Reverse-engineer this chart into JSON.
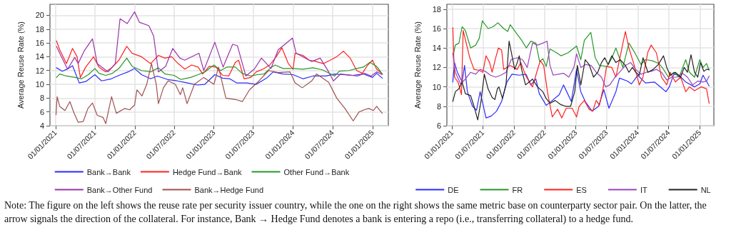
{
  "chart_data": [
    {
      "type": "line",
      "ylabel": "Average Reuse Rate (%)",
      "xlim": [
        "2020-12-06",
        "2025-03-15"
      ],
      "ylim": [
        4,
        21.6
      ],
      "yticks": [
        4,
        6,
        8,
        10,
        12,
        14,
        16,
        18,
        20
      ],
      "xticks": [
        {
          "value": "2021-01-01",
          "label": "01/01/2021"
        },
        {
          "value": "2021-07-01",
          "label": "01/07/2021"
        },
        {
          "value": "2022-01-01",
          "label": "01/01/2022"
        },
        {
          "value": "2022-07-01",
          "label": "01/07/2022"
        },
        {
          "value": "2023-01-01",
          "label": "01/01/2023"
        },
        {
          "value": "2023-07-01",
          "label": "01/07/2023"
        },
        {
          "value": "2024-01-01",
          "label": "01/01/2024"
        },
        {
          "value": "2024-07-01",
          "label": "01/07/2024"
        },
        {
          "value": "2025-01-01",
          "label": "01/01/2025"
        }
      ],
      "grid": true,
      "legend": "bottom",
      "marker": "none",
      "line_style": "solid",
      "annotations": [
        "Note: The figure on the left shows the reuse rate per security issuer country, while the one on the right shows the same metric base on counterparty sector pair. On the latter, the arrow signals the direction of the collateral. For instance, Bank → Hedge Fund denotes a bank is entering a repo (i.e., transferring collateral) to a hedge fund."
      ],
      "series": [
        {
          "name": "Bank→Bank",
          "color": "#2b2bff",
          "x": [
            "2021-01-05",
            "2021-02-01",
            "2021-03-01",
            "2021-03-20",
            "2021-04-20",
            "2021-05-20",
            "2021-07-01",
            "2021-08-01",
            "2021-09-15",
            "2021-10-20",
            "2021-12-01",
            "2021-12-31",
            "2022-02-01",
            "2022-03-15",
            "2022-04-15",
            "2022-06-01",
            "2022-07-15",
            "2022-09-01",
            "2022-10-15",
            "2022-11-20",
            "2023-01-05",
            "2023-02-10",
            "2023-03-15",
            "2023-04-15",
            "2023-06-01",
            "2023-07-15",
            "2023-09-01",
            "2023-10-01",
            "2023-11-15",
            "2024-01-01",
            "2024-02-15",
            "2024-04-01",
            "2024-06-01",
            "2024-07-10",
            "2024-08-15",
            "2024-10-01",
            "2024-11-20",
            "2025-01-01",
            "2025-01-20",
            "2025-02-15"
          ],
          "values": [
            12.4,
            11.9,
            12.3,
            12.7,
            10.2,
            10.4,
            11.4,
            10.5,
            10.8,
            11.3,
            11.8,
            12.3,
            11.4,
            10.8,
            11.2,
            10.7,
            10.5,
            10.2,
            9.9,
            10.0,
            11.4,
            10.9,
            10.8,
            10.2,
            10.2,
            10.0,
            10.9,
            11.8,
            11.5,
            11.4,
            10.8,
            11.2,
            11.2,
            11.5,
            11.4,
            11.3,
            11.5,
            11.0,
            11.6,
            10.9
          ]
        },
        {
          "name": "Hedge Fund→Bank",
          "color": "#ff2020",
          "x": [
            "2021-01-05",
            "2021-01-20",
            "2021-02-20",
            "2021-03-20",
            "2021-04-10",
            "2021-04-25",
            "2021-05-20",
            "2021-06-25",
            "2021-07-20",
            "2021-08-20",
            "2021-09-20",
            "2021-10-20",
            "2021-11-25",
            "2021-12-20",
            "2022-02-01",
            "2022-03-15",
            "2022-04-20",
            "2022-05-20",
            "2022-06-20",
            "2022-07-20",
            "2022-08-20",
            "2022-09-20",
            "2022-10-20",
            "2022-11-10",
            "2022-12-10",
            "2023-01-10",
            "2023-02-10",
            "2023-03-10",
            "2023-04-10",
            "2023-04-25",
            "2023-05-20",
            "2023-06-20",
            "2023-07-15",
            "2023-08-15",
            "2023-09-15",
            "2023-10-15",
            "2023-11-10",
            "2023-12-10",
            "2024-01-01",
            "2024-01-10",
            "2024-02-15",
            "2024-03-15",
            "2024-04-15",
            "2024-05-20",
            "2024-06-20",
            "2024-07-20",
            "2024-08-20",
            "2024-09-20",
            "2024-10-20",
            "2024-11-15",
            "2024-12-10",
            "2025-01-01",
            "2025-01-20",
            "2025-02-15"
          ],
          "values": [
            16.3,
            15,
            13,
            15.2,
            14,
            11,
            12.5,
            14,
            12.5,
            11.8,
            12.5,
            13.5,
            15.5,
            14.5,
            14,
            13,
            14.2,
            13.8,
            14,
            13,
            12.2,
            12.8,
            12.5,
            11.5,
            12.6,
            12.5,
            11.3,
            11.2,
            13.2,
            13.5,
            10.8,
            11.0,
            11.8,
            12.2,
            12.8,
            14.0,
            15.3,
            13.0,
            12.2,
            14.5,
            14.2,
            13.5,
            13.3,
            13.0,
            13.5,
            14.0,
            14.8,
            13.8,
            12.0,
            11.6,
            12.8,
            13.5,
            12.2,
            11.5
          ]
        },
        {
          "name": "Other Fund→Bank",
          "color": "#2a962a",
          "x": [
            "2021-01-05",
            "2021-01-20",
            "2021-02-20",
            "2021-04-01",
            "2021-05-01",
            "2021-06-01",
            "2021-07-01",
            "2021-07-20",
            "2021-08-20",
            "2021-09-20",
            "2021-10-20",
            "2021-11-25",
            "2021-12-20",
            "2022-02-01",
            "2022-03-15",
            "2022-04-20",
            "2022-05-20",
            "2022-07-01",
            "2022-08-01",
            "2022-09-15",
            "2022-10-20",
            "2022-11-20",
            "2023-01-01",
            "2023-02-01",
            "2023-03-01",
            "2023-04-10",
            "2023-05-10",
            "2023-06-20",
            "2023-07-20",
            "2023-08-20",
            "2023-09-20",
            "2023-10-10",
            "2023-11-15",
            "2024-01-01",
            "2024-02-15",
            "2024-04-01",
            "2024-05-15",
            "2024-06-15",
            "2024-07-10",
            "2024-08-01",
            "2024-09-15",
            "2024-10-20",
            "2024-11-20",
            "2024-12-20",
            "2025-01-20",
            "2025-02-15"
          ],
          "values": [
            11,
            11.5,
            11.2,
            11.0,
            10.8,
            11.4,
            12.3,
            11.6,
            11.3,
            11.6,
            12.3,
            13.8,
            12.6,
            12.0,
            11.8,
            12.4,
            11.5,
            11.3,
            10.7,
            11.0,
            11.4,
            11.8,
            12.8,
            12.0,
            12.5,
            12.5,
            11.6,
            11.2,
            11.4,
            11.5,
            12.4,
            12.8,
            12.3,
            12.3,
            12.2,
            12.4,
            12.1,
            11.6,
            11.2,
            11.9,
            12.0,
            12.3,
            12.5,
            13.2,
            12.6,
            11.5
          ]
        },
        {
          "name": "Bank→Other Fund",
          "color": "#9933aa",
          "x": [
            "2021-01-05",
            "2021-01-28",
            "2021-02-25",
            "2021-03-30",
            "2021-04-15",
            "2021-05-12",
            "2021-06-20",
            "2021-07-12",
            "2021-08-31",
            "2021-10-03",
            "2021-10-25",
            "2021-11-27",
            "2021-12-31",
            "2022-01-22",
            "2022-03-07",
            "2022-03-29",
            "2022-04-20",
            "2022-05-23",
            "2022-06-25",
            "2022-07-28",
            "2022-08-19",
            "2022-10-24",
            "2022-11-15",
            "2023-01-05",
            "2023-02-12",
            "2023-03-28",
            "2023-04-19",
            "2023-05-28",
            "2023-07-06",
            "2023-08-08",
            "2023-09-21",
            "2023-10-24",
            "2023-12-29",
            "2024-01-15",
            "2024-03-27",
            "2024-05-05",
            "2024-06-13",
            "2024-07-05",
            "2024-08-07",
            "2024-10-24",
            "2024-11-25",
            "2024-12-25",
            "2025-01-20",
            "2025-02-15"
          ],
          "values": [
            15.5,
            14,
            12.2,
            13.9,
            13,
            14.8,
            16.6,
            13,
            11.8,
            13,
            19.5,
            18.8,
            20.5,
            19,
            18.5,
            17,
            11.8,
            12.6,
            15.2,
            13.8,
            13.5,
            14.5,
            12,
            16.1,
            12.5,
            15.8,
            15.6,
            11.2,
            12.2,
            13.8,
            12.3,
            15,
            16.7,
            14.5,
            13.3,
            13.8,
            11.8,
            10.5,
            11.5,
            11.2,
            11.6,
            11.2,
            11.8,
            11.4
          ]
        },
        {
          "name": "Bank→Hedge Fund",
          "color": "#a05050",
          "x": [
            "2021-01-03",
            "2021-01-08",
            "2021-01-20",
            "2021-02-13",
            "2021-03-08",
            "2021-03-25",
            "2021-04-15",
            "2021-05-08",
            "2021-05-30",
            "2021-06-20",
            "2021-07-12",
            "2021-08-08",
            "2021-08-20",
            "2021-09-16",
            "2021-10-08",
            "2021-11-16",
            "2021-12-08",
            "2021-12-31",
            "2022-01-11",
            "2022-02-03",
            "2022-02-25",
            "2022-03-19",
            "2022-04-10",
            "2022-04-20",
            "2022-05-13",
            "2022-06-04",
            "2022-07-07",
            "2022-07-30",
            "2022-08-10",
            "2022-08-30",
            "2022-10-03",
            "2022-11-15",
            "2023-01-01",
            "2023-01-22",
            "2023-02-25",
            "2023-04-10",
            "2023-05-12",
            "2023-06-14",
            "2023-07-28",
            "2023-09-10",
            "2023-10-24",
            "2023-12-18",
            "2024-01-10",
            "2024-02-12",
            "2024-03-27",
            "2024-04-18",
            "2024-06-13",
            "2024-07-20",
            "2024-08-27",
            "2024-10-04",
            "2024-10-31",
            "2024-11-23",
            "2024-12-15",
            "2025-01-05",
            "2025-01-20",
            "2025-02-15"
          ],
          "values": [
            5.6,
            8.2,
            6.8,
            6.2,
            7.5,
            6,
            4.5,
            4.6,
            6.5,
            7.3,
            5.5,
            5.2,
            4.3,
            8.2,
            5.8,
            6.5,
            6.3,
            7,
            9.2,
            8.3,
            10,
            13,
            10,
            7.2,
            9.5,
            10.5,
            10,
            8.5,
            9.5,
            7.2,
            10,
            11,
            10,
            12.5,
            8,
            7.8,
            7.5,
            9.2,
            10.5,
            12,
            11.7,
            11.8,
            10.2,
            9.5,
            10.5,
            11.5,
            10.3,
            8,
            6.5,
            4.7,
            6,
            6.3,
            6.5,
            6.2,
            6.8,
            5.8
          ]
        }
      ]
    },
    {
      "type": "line",
      "ylabel": "Average Reuse Rate (%)",
      "xlim": [
        "2020-12-01",
        "2025-03-25"
      ],
      "ylim": [
        6,
        18.5
      ],
      "yticks": [
        6,
        8,
        10,
        12,
        14,
        16,
        18
      ],
      "xticks": [
        {
          "value": "2021-01-01",
          "label": "01/01/2021"
        },
        {
          "value": "2021-07-01",
          "label": "01/07/2021"
        },
        {
          "value": "2022-01-01",
          "label": "01/01/2022"
        },
        {
          "value": "2022-07-01",
          "label": "01/07/2022"
        },
        {
          "value": "2023-01-01",
          "label": "01/01/2023"
        },
        {
          "value": "2023-07-01",
          "label": "01/07/2023"
        },
        {
          "value": "2024-01-01",
          "label": "01/01/2024"
        },
        {
          "value": "2024-07-01",
          "label": "01/07/2024"
        },
        {
          "value": "2025-01-01",
          "label": "01/01/2025"
        }
      ],
      "grid": true,
      "legend": "bottom",
      "marker": "none",
      "line_style": "solid",
      "series": [
        {
          "name": "DE",
          "color": "#2b2bff",
          "x": [
            "2021-01-05",
            "2021-01-15",
            "2021-02-01",
            "2021-03-01",
            "2021-03-15",
            "2021-04-01",
            "2021-05-01",
            "2021-05-25",
            "2021-06-15",
            "2021-07-20",
            "2021-08-20",
            "2021-09-20",
            "2021-10-20",
            "2021-11-20",
            "2021-12-20",
            "2022-02-01",
            "2022-03-13",
            "2022-04-10",
            "2022-05-10",
            "2022-05-30",
            "2022-07-10",
            "2022-08-01",
            "2022-09-25",
            "2022-10-20",
            "2022-12-05",
            "2023-01-05",
            "2023-01-30",
            "2023-02-25",
            "2023-04-07",
            "2023-05-15",
            "2023-06-15",
            "2023-07-15",
            "2023-08-25",
            "2023-09-15",
            "2023-11-01",
            "2023-11-25",
            "2024-01-01",
            "2024-02-15",
            "2024-04-08",
            "2024-05-20",
            "2024-06-15",
            "2024-07-05",
            "2024-08-01",
            "2024-09-01",
            "2024-10-10",
            "2024-12-01",
            "2025-01-01",
            "2025-01-20",
            "2025-02-25"
          ],
          "values": [
            10.5,
            12.5,
            11.5,
            10.5,
            12.2,
            9.5,
            8,
            7.6,
            9.5,
            6.8,
            7,
            7.5,
            8.5,
            10.5,
            11.3,
            11.2,
            11.3,
            10.2,
            10.8,
            9.3,
            8.1,
            8.4,
            9.2,
            10.2,
            8.5,
            11.8,
            9.5,
            8.5,
            7.5,
            8,
            9.7,
            7.8,
            9.5,
            10.9,
            10.6,
            10.3,
            11.2,
            10.4,
            10.5,
            9.9,
            9.5,
            10.0,
            11.3,
            11.2,
            10.5,
            10.0,
            10.3,
            11.2,
            10.1
          ]
        },
        {
          "name": "FR",
          "color": "#2a962a",
          "x": [
            "2021-01-10",
            "2021-01-20",
            "2021-02-10",
            "2021-03-01",
            "2021-03-20",
            "2021-04-20",
            "2021-05-20",
            "2021-06-10",
            "2021-06-28",
            "2021-08-01",
            "2021-09-01",
            "2021-09-28",
            "2021-11-01",
            "2021-11-25",
            "2021-12-10",
            "2022-01-20",
            "2022-02-15",
            "2022-03-15",
            "2022-04-10",
            "2022-05-10",
            "2022-06-01",
            "2022-06-20",
            "2022-07-10",
            "2022-08-01",
            "2022-09-10",
            "2022-10-05",
            "2022-11-15",
            "2023-01-05",
            "2023-01-30",
            "2023-02-20",
            "2023-03-30",
            "2023-04-25",
            "2023-05-20",
            "2023-07-05",
            "2023-07-30",
            "2023-08-25",
            "2023-10-05",
            "2023-11-10",
            "2023-12-15",
            "2024-01-20",
            "2024-02-15",
            "2024-03-25",
            "2024-05-05",
            "2024-06-01",
            "2024-06-30",
            "2024-08-01",
            "2024-09-01",
            "2024-10-10",
            "2024-11-01",
            "2024-12-01",
            "2025-01-01",
            "2025-01-20",
            "2025-02-10",
            "2025-02-25"
          ],
          "values": [
            13.5,
            14.3,
            14.5,
            16.2,
            15.8,
            14.0,
            14.3,
            15.0,
            16.8,
            16.0,
            16.2,
            16.6,
            16.0,
            15.7,
            16.4,
            15.4,
            14.8,
            14.0,
            14.7,
            14.5,
            12.6,
            12.9,
            12.1,
            13.9,
            13.5,
            13.2,
            13.5,
            14.2,
            12.8,
            14.8,
            15.6,
            13.0,
            12.2,
            12.1,
            12.9,
            14.0,
            12.0,
            14.5,
            13.5,
            12.3,
            12.8,
            12.7,
            12.4,
            11.8,
            11.0,
            11.5,
            11.0,
            12.8,
            11.5,
            11.0,
            12.8,
            12.0,
            12.4,
            11.7
          ]
        },
        {
          "name": "ES",
          "color": "#ff2020",
          "x": [
            "2021-01-05",
            "2021-01-15",
            "2021-02-05",
            "2021-02-25",
            "2021-03-07",
            "2021-04-15",
            "2021-05-10",
            "2021-06-10",
            "2021-07-01",
            "2021-07-20",
            "2021-08-10",
            "2021-08-25",
            "2021-09-15",
            "2021-10-01",
            "2021-10-20",
            "2021-11-01",
            "2021-11-20",
            "2021-12-10",
            "2022-01-20",
            "2022-02-10",
            "2022-03-10",
            "2022-04-01",
            "2022-04-20",
            "2022-05-10",
            "2022-06-05",
            "2022-06-25",
            "2022-07-20",
            "2022-08-15",
            "2022-09-15",
            "2022-10-10",
            "2022-11-05",
            "2022-12-10",
            "2023-01-05",
            "2023-01-20",
            "2023-02-20",
            "2023-03-20",
            "2023-04-10",
            "2023-05-01",
            "2023-05-20",
            "2023-06-10",
            "2023-07-01",
            "2023-08-01",
            "2023-08-25",
            "2023-09-25",
            "2023-10-20",
            "2023-11-10",
            "2023-12-10",
            "2024-01-10",
            "2024-02-01",
            "2024-03-01",
            "2024-03-20",
            "2024-04-20",
            "2024-05-20",
            "2024-06-20",
            "2024-07-10",
            "2024-08-10",
            "2024-09-10",
            "2024-10-10",
            "2024-11-01",
            "2024-12-01",
            "2025-01-10",
            "2025-02-10",
            "2025-02-25"
          ],
          "values": [
            16.1,
            11,
            10.5,
            9.2,
            15.8,
            13,
            11.8,
            11.7,
            11.5,
            13.2,
            12.5,
            11.5,
            13,
            14,
            13.8,
            11.8,
            12.0,
            12.2,
            11.8,
            12.5,
            11.2,
            10.5,
            10.0,
            11.2,
            12.7,
            12.2,
            9.2,
            6.9,
            7.7,
            6.8,
            7.8,
            7.8,
            6.9,
            8.0,
            8.6,
            7.7,
            7.5,
            8.6,
            8.1,
            9.8,
            12.1,
            12.0,
            11.0,
            13.6,
            15.7,
            14,
            12.3,
            10.2,
            11.0,
            13.6,
            14.3,
            13.5,
            11.0,
            10.2,
            11.5,
            10.5,
            11.0,
            9.5,
            10.0,
            9.6,
            10.0,
            9.8,
            8.3
          ]
        },
        {
          "name": "IT",
          "color": "#9944bb",
          "x": [
            "2021-01-05",
            "2021-01-20",
            "2021-02-20",
            "2021-03-20",
            "2021-04-20",
            "2021-05-20",
            "2021-06-15",
            "2021-07-15",
            "2021-08-15",
            "2021-09-15",
            "2021-10-15",
            "2021-11-15",
            "2021-12-15",
            "2022-01-20",
            "2022-02-20",
            "2022-03-20",
            "2022-04-20",
            "2022-05-20",
            "2022-06-20",
            "2022-07-15",
            "2022-08-01",
            "2022-08-20",
            "2022-09-20",
            "2022-10-20",
            "2022-11-20",
            "2022-12-20",
            "2023-01-05",
            "2023-01-30",
            "2023-03-01",
            "2023-04-01",
            "2023-05-01",
            "2023-06-01",
            "2023-06-25",
            "2023-07-20",
            "2023-08-20",
            "2023-09-20",
            "2023-10-20",
            "2023-11-20",
            "2023-12-20",
            "2024-01-20",
            "2024-02-20",
            "2024-03-20",
            "2024-04-20",
            "2024-05-20",
            "2024-06-20",
            "2024-07-20",
            "2024-08-20",
            "2024-09-20",
            "2024-10-20",
            "2024-11-20",
            "2024-12-20",
            "2025-01-20",
            "2025-02-10",
            "2025-02-25"
          ],
          "values": [
            13.5,
            11.5,
            10.3,
            10.8,
            11.5,
            11.3,
            11.8,
            11.6,
            11.2,
            11.0,
            11.2,
            11.5,
            12.8,
            13.0,
            12.8,
            12.0,
            14.5,
            14.3,
            14.5,
            14.7,
            12.2,
            11.2,
            11.3,
            11.4,
            11.0,
            12.0,
            13.4,
            12,
            12.3,
            12.2,
            11.5,
            11.0,
            10.0,
            10.2,
            11.0,
            11.6,
            12.2,
            12.5,
            11.8,
            11.3,
            11.5,
            11.6,
            11.8,
            11.5,
            10.7,
            11.0,
            11.0,
            11.4,
            11.0,
            10.2,
            10.6,
            10.5,
            10.6,
            11.1
          ]
        },
        {
          "name": "NL",
          "color": "#222222",
          "x": [
            "2021-01-05",
            "2021-01-20",
            "2021-02-10",
            "2021-03-01",
            "2021-03-20",
            "2021-04-20",
            "2021-05-10",
            "2021-06-01",
            "2021-06-20",
            "2021-07-10",
            "2021-08-01",
            "2021-08-25",
            "2021-09-10",
            "2021-09-25",
            "2021-10-04",
            "2021-10-25",
            "2021-11-15",
            "2021-12-03",
            "2022-01-05",
            "2022-01-20",
            "2022-02-01",
            "2022-02-15",
            "2022-03-10",
            "2022-04-01",
            "2022-04-20",
            "2022-05-20",
            "2022-06-20",
            "2022-07-10",
            "2022-08-01",
            "2022-09-01",
            "2022-10-01",
            "2022-11-01",
            "2022-12-01",
            "2022-12-25",
            "2023-01-10",
            "2023-01-30",
            "2023-02-25",
            "2023-03-20",
            "2023-04-15",
            "2023-05-10",
            "2023-06-01",
            "2023-06-20",
            "2023-07-10",
            "2023-08-01",
            "2023-08-25",
            "2023-09-20",
            "2023-10-20",
            "2023-11-10",
            "2023-12-01",
            "2023-12-20",
            "2024-01-10",
            "2024-02-01",
            "2024-03-01",
            "2024-04-01",
            "2024-05-01",
            "2024-06-01",
            "2024-06-20",
            "2024-07-10",
            "2024-08-10",
            "2024-09-10",
            "2024-10-01",
            "2024-10-20",
            "2024-11-10",
            "2024-12-01",
            "2024-12-20",
            "2025-01-05",
            "2025-01-25",
            "2025-02-10",
            "2025-02-25"
          ],
          "values": [
            8.5,
            9.5,
            9.8,
            10.5,
            9.3,
            9.1,
            8.0,
            6.6,
            8.5,
            11.3,
            9.8,
            8.9,
            8.7,
            9.8,
            10.0,
            8.8,
            10.3,
            14.7,
            11.8,
            12.5,
            13.2,
            11.8,
            10.2,
            10.5,
            10.8,
            10.0,
            9.5,
            8.8,
            8.3,
            8.6,
            8.2,
            8.0,
            8.0,
            9.5,
            12.2,
            10.2,
            12.8,
            12.3,
            11.0,
            11.5,
            12.5,
            13.0,
            12.3,
            13.2,
            12.5,
            12.8,
            12.2,
            11.5,
            12.0,
            11.5,
            11.2,
            13.0,
            11.5,
            11.8,
            12.3,
            13.2,
            12.0,
            11.2,
            11.5,
            11.0,
            12.0,
            11.5,
            13.3,
            11.5,
            11.0,
            12.5,
            11.6,
            11.8,
            11.8
          ]
        }
      ]
    }
  ]
}
